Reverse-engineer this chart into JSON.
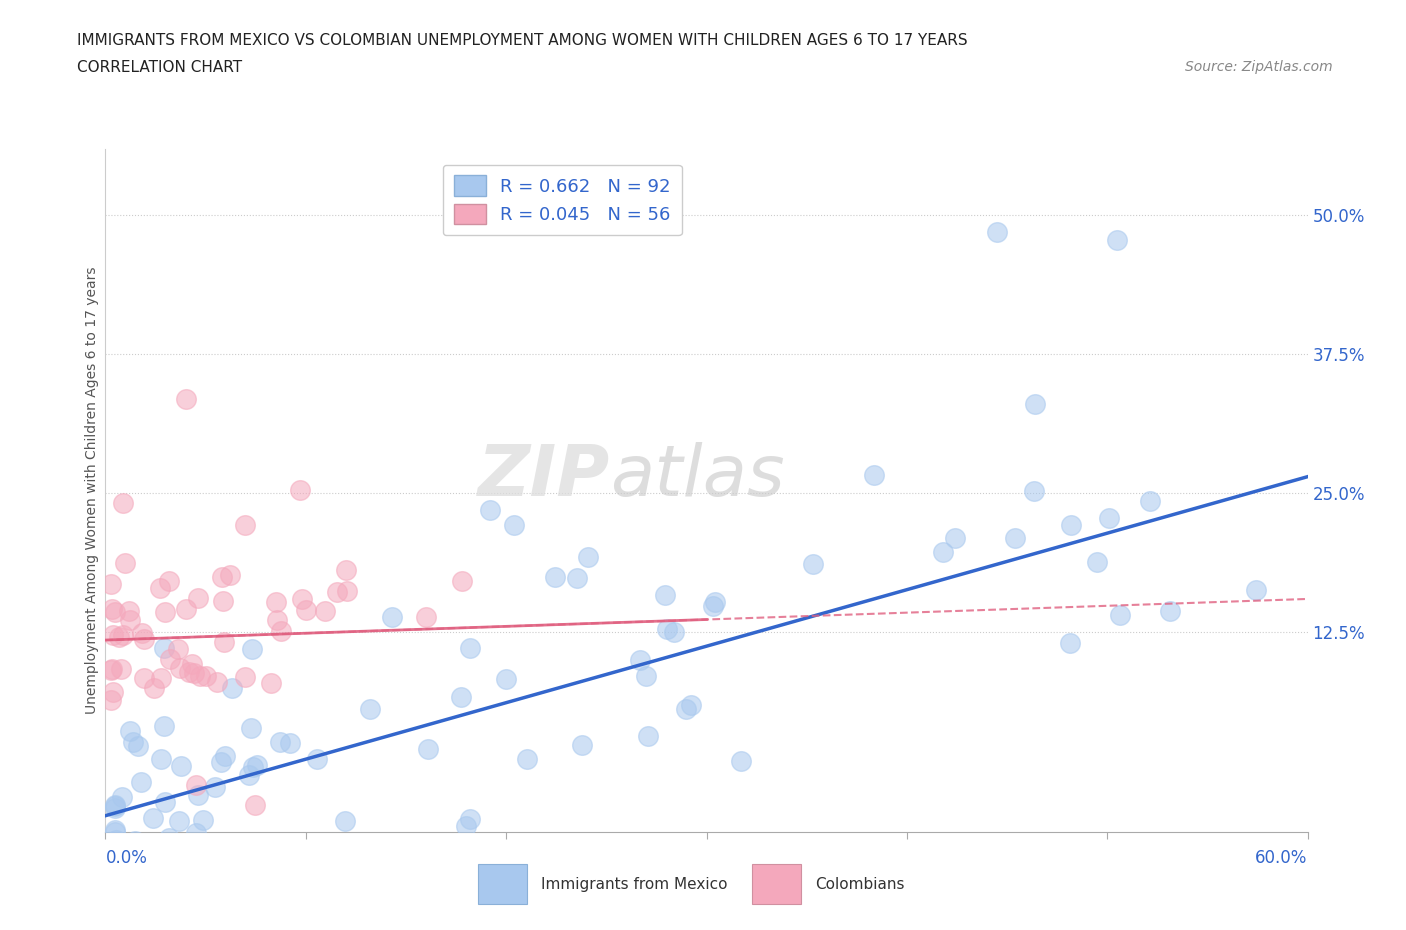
{
  "title_line1": "IMMIGRANTS FROM MEXICO VS COLOMBIAN UNEMPLOYMENT AMONG WOMEN WITH CHILDREN AGES 6 TO 17 YEARS",
  "title_line2": "CORRELATION CHART",
  "source": "Source: ZipAtlas.com",
  "ylabel": "Unemployment Among Women with Children Ages 6 to 17 years",
  "ytick_vals": [
    0.125,
    0.25,
    0.375,
    0.5
  ],
  "xlim": [
    0.0,
    0.6
  ],
  "ylim": [
    -0.055,
    0.56
  ],
  "legend_r1": "R = 0.662   N = 92",
  "legend_r2": "R = 0.045   N = 56",
  "color_mexico": "#A8C8EE",
  "color_colombia": "#F4A8BC",
  "color_mexico_line": "#3366CC",
  "color_colombia_line": "#E06080",
  "color_colombia_line_dashed": "#E06080",
  "mexico_trendline": [
    0.0,
    0.6,
    -0.04,
    0.265
  ],
  "colombia_trendline": [
    0.0,
    0.6,
    0.118,
    0.155
  ],
  "watermark_zip": "ZIP",
  "watermark_atlas": "atlas",
  "seed_mexico": 42,
  "seed_colombia": 17,
  "n_mexico": 92,
  "n_colombia": 56
}
